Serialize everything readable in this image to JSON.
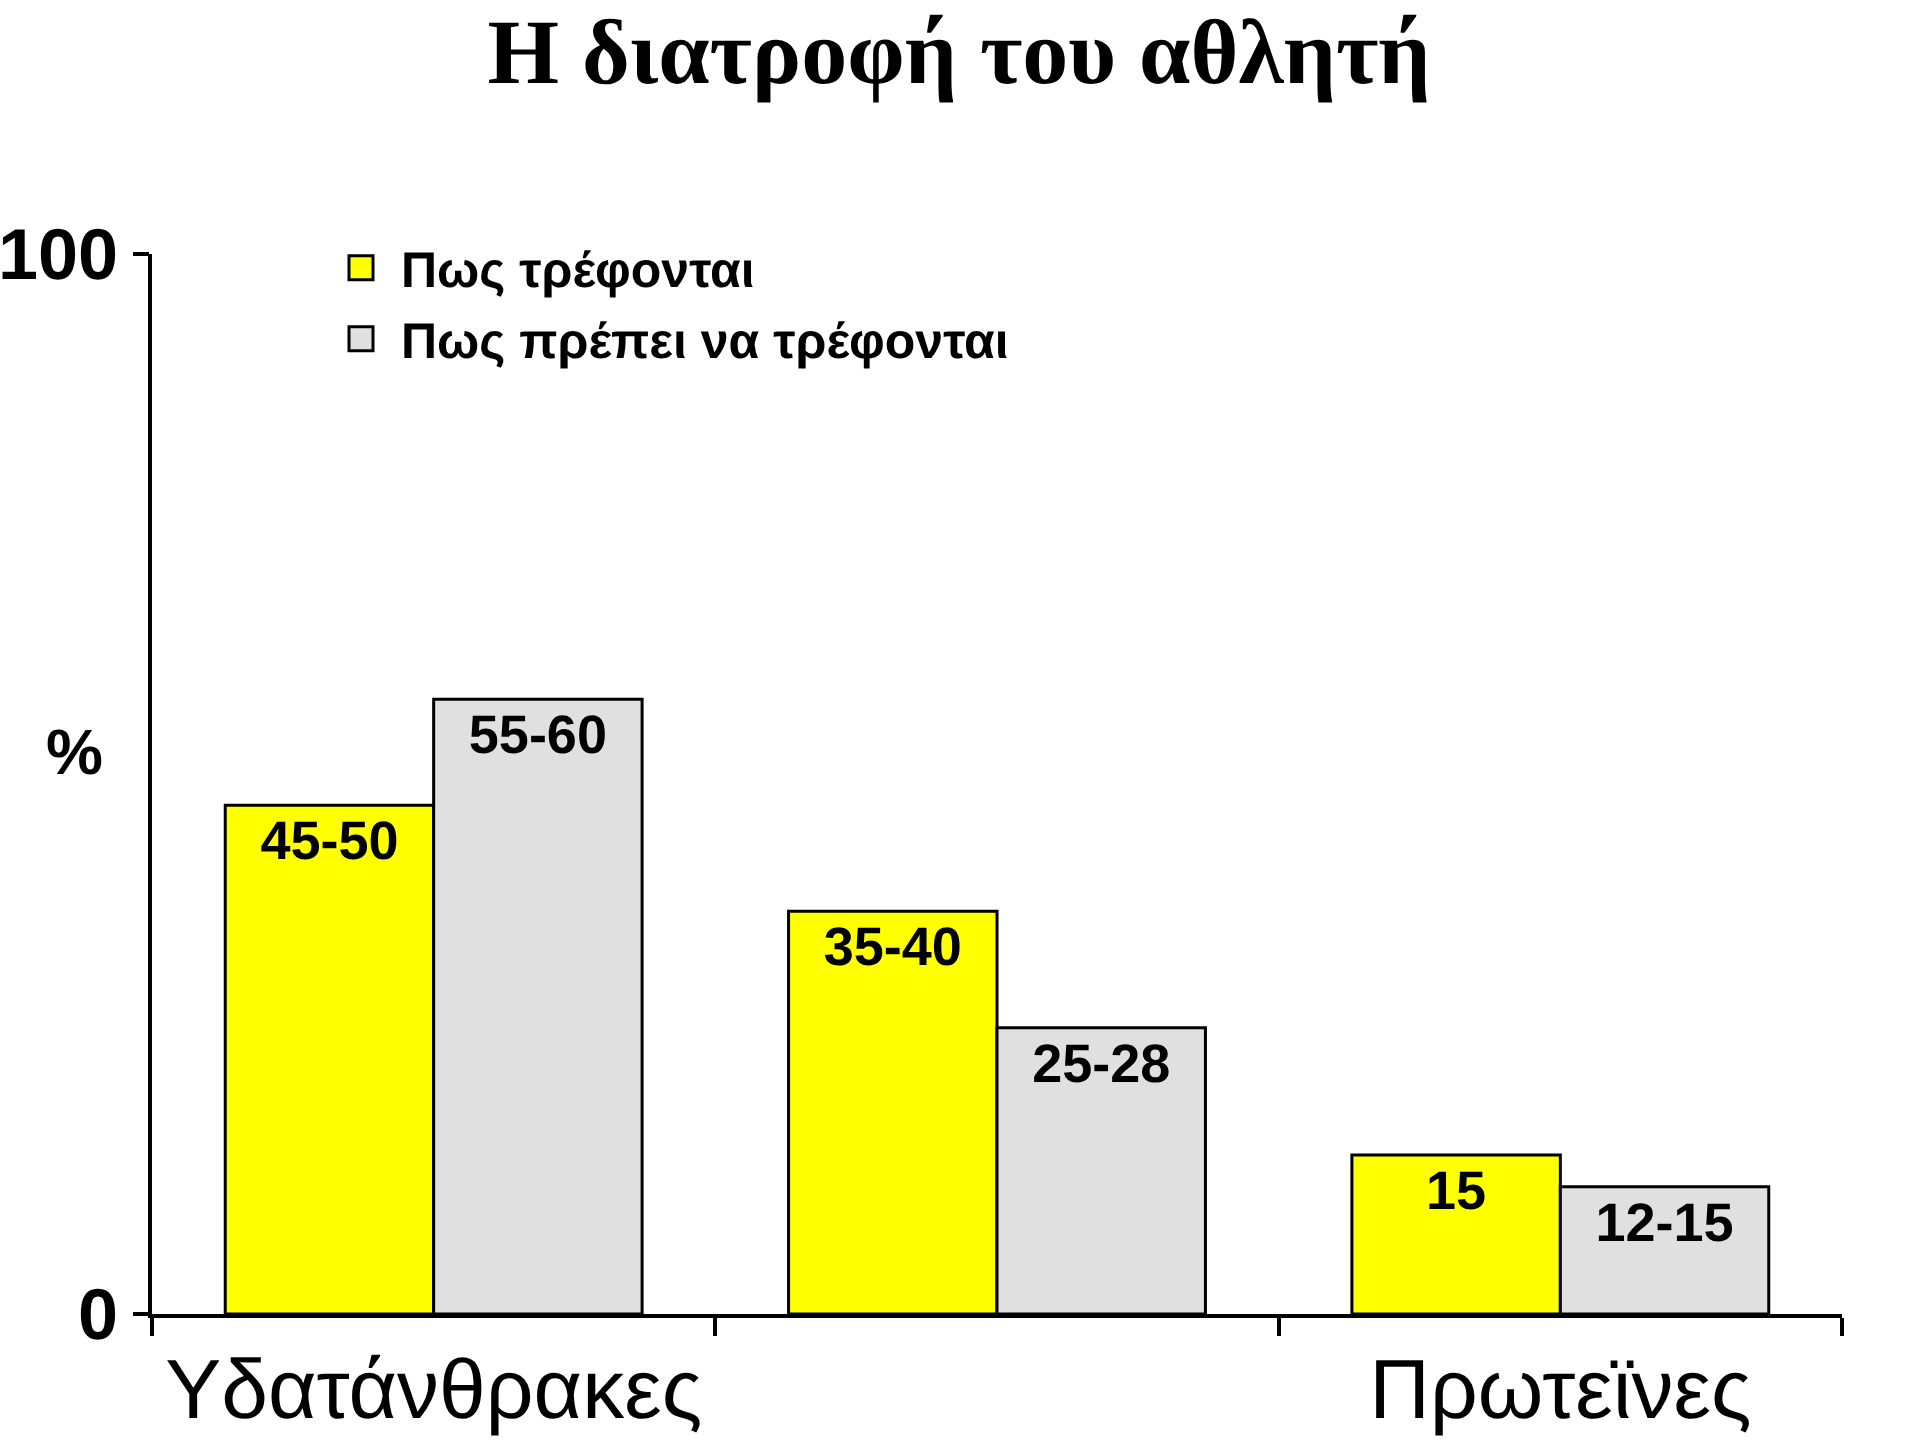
{
  "chart_data": {
    "type": "bar",
    "title": "Η διατροφή του αθλητή",
    "ylabel": "%",
    "categories": [
      "Υδατάνθρακες",
      null,
      "Πρωτεϊνες"
    ],
    "series": [
      {
        "name": "Πως τρέφονται",
        "color": "#ffff00",
        "values": [
          48,
          38,
          15
        ],
        "value_labels": [
          "45-50",
          "35-40",
          "15"
        ]
      },
      {
        "name": "Πως πρέπει να τρέφονται",
        "color": "#e0e0e0",
        "values": [
          58,
          27,
          12
        ],
        "value_labels": [
          "55-60",
          "25-28",
          "12-15"
        ]
      }
    ],
    "ylim": [
      0,
      100
    ],
    "yticks": [
      0,
      100
    ],
    "grid": false,
    "legend": "top left"
  }
}
